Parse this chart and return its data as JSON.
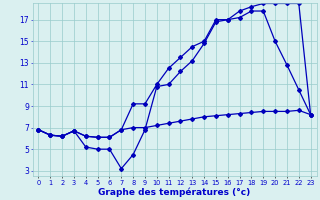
{
  "title": "Graphe des températures (°c)",
  "x": [
    0,
    1,
    2,
    3,
    4,
    5,
    6,
    7,
    8,
    9,
    10,
    11,
    12,
    13,
    14,
    15,
    16,
    17,
    18,
    19,
    20,
    21,
    22,
    23
  ],
  "line1_y": [
    6.8,
    6.3,
    6.2,
    6.7,
    6.2,
    6.1,
    6.1,
    6.8,
    7.0,
    7.0,
    7.2,
    7.4,
    7.6,
    7.8,
    8.0,
    8.1,
    8.2,
    8.3,
    8.4,
    8.5,
    8.5,
    8.5,
    8.6,
    8.2
  ],
  "line2_y": [
    6.8,
    6.3,
    6.2,
    6.7,
    5.2,
    5.0,
    5.0,
    3.2,
    4.5,
    6.8,
    10.8,
    11.0,
    12.2,
    13.2,
    14.8,
    16.8,
    17.0,
    17.2,
    17.8,
    17.8,
    15.0,
    12.8,
    10.5,
    8.2
  ],
  "line3_y": [
    6.8,
    6.3,
    6.2,
    6.7,
    6.2,
    6.1,
    6.1,
    6.8,
    9.2,
    9.2,
    11.0,
    12.5,
    13.5,
    14.5,
    15.0,
    17.0,
    17.0,
    17.8,
    18.2,
    18.5,
    18.5,
    18.5,
    18.5,
    8.2
  ],
  "bg_color": "#daf0f0",
  "line_color": "#0000bb",
  "grid_color": "#99cccc",
  "label_color": "#0000cc",
  "ylim": [
    2.5,
    18.5
  ],
  "yticks": [
    3,
    5,
    7,
    9,
    11,
    13,
    15,
    17
  ],
  "xlim": [
    -0.5,
    23.5
  ],
  "figsize": [
    3.2,
    2.0
  ],
  "dpi": 100
}
